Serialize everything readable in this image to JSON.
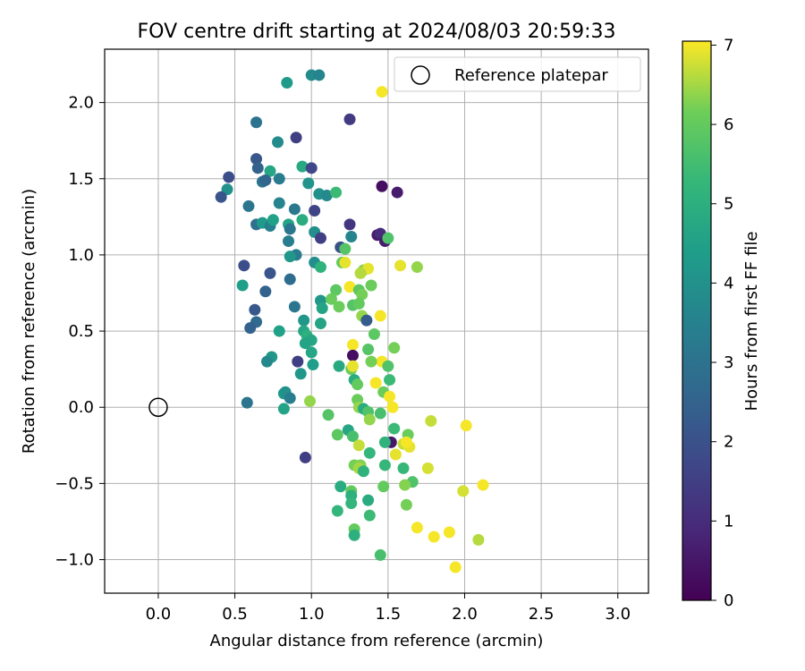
{
  "chart_data": {
    "type": "scatter",
    "title": "FOV centre drift starting at 2024/08/03 20:59:33",
    "xlabel": "Angular distance from reference (arcmin)",
    "ylabel": "Rotation from reference (arcmin)",
    "xlim": [
      -0.35,
      3.2
    ],
    "ylim": [
      -1.22,
      2.35
    ],
    "xticks": [
      0.0,
      0.5,
      1.0,
      1.5,
      2.0,
      2.5,
      3.0
    ],
    "xtick_labels": [
      "0.0",
      "0.5",
      "1.0",
      "1.5",
      "2.0",
      "2.5",
      "3.0"
    ],
    "yticks": [
      -1.0,
      -0.5,
      0.0,
      0.5,
      1.0,
      1.5,
      2.0
    ],
    "ytick_labels": [
      "−1.0",
      "−0.5",
      "0.0",
      "0.5",
      "1.0",
      "1.5",
      "2.0"
    ],
    "grid": true,
    "colormap": "viridis",
    "colorbar": {
      "label": "Hours from first FF file",
      "range": [
        0,
        7.05
      ],
      "ticks": [
        0,
        1,
        2,
        3,
        4,
        5,
        6,
        7
      ],
      "tick_labels": [
        "0",
        "1",
        "2",
        "3",
        "4",
        "5",
        "6",
        "7"
      ]
    },
    "legend": {
      "placement": "top-right",
      "entries": [
        {
          "label": "Reference platepar",
          "marker": "open-circle"
        }
      ]
    },
    "reference_point": {
      "x": 0.0,
      "y": 0.0
    },
    "series": [
      {
        "points": [
          [
            0.84,
            2.13,
            4.3
          ],
          [
            1.0,
            2.18,
            3.8
          ],
          [
            1.05,
            2.18,
            3.6
          ],
          [
            1.46,
            2.07,
            7.0
          ],
          [
            0.64,
            1.87,
            3.0
          ],
          [
            1.25,
            1.89,
            1.4
          ],
          [
            0.9,
            1.77,
            1.5
          ],
          [
            0.78,
            1.74,
            3.8
          ],
          [
            0.64,
            1.63,
            2.2
          ],
          [
            0.65,
            1.57,
            2.5
          ],
          [
            0.73,
            1.55,
            4.7
          ],
          [
            0.94,
            1.58,
            4.8
          ],
          [
            1.0,
            1.57,
            1.7
          ],
          [
            0.46,
            1.51,
            1.9
          ],
          [
            0.68,
            1.48,
            3.0
          ],
          [
            0.7,
            1.49,
            2.6
          ],
          [
            0.79,
            1.5,
            3.3
          ],
          [
            1.46,
            1.45,
            0.3
          ],
          [
            1.56,
            1.41,
            0.6
          ],
          [
            0.45,
            1.43,
            4.0
          ],
          [
            0.98,
            1.47,
            4.1
          ],
          [
            0.41,
            1.38,
            2.1
          ],
          [
            1.05,
            1.4,
            4.0
          ],
          [
            1.1,
            1.39,
            3.7
          ],
          [
            1.16,
            1.41,
            5.4
          ],
          [
            0.59,
            1.32,
            3.1
          ],
          [
            0.79,
            1.34,
            3.6
          ],
          [
            0.89,
            1.3,
            3.2
          ],
          [
            1.02,
            1.29,
            1.6
          ],
          [
            0.64,
            1.2,
            2.9
          ],
          [
            0.68,
            1.21,
            4.3
          ],
          [
            0.73,
            1.19,
            3.5
          ],
          [
            0.75,
            1.23,
            4.5
          ],
          [
            0.85,
            1.2,
            4.6
          ],
          [
            0.86,
            1.17,
            3.1
          ],
          [
            0.94,
            1.23,
            4.9
          ],
          [
            1.02,
            1.15,
            3.9
          ],
          [
            1.25,
            1.2,
            1.3
          ],
          [
            1.43,
            1.13,
            0.6
          ],
          [
            1.45,
            1.14,
            1.0
          ],
          [
            1.48,
            1.09,
            0.6
          ],
          [
            1.5,
            1.11,
            5.7
          ],
          [
            0.85,
            1.09,
            3.4
          ],
          [
            1.06,
            1.11,
            1.5
          ],
          [
            1.26,
            1.12,
            3.6
          ],
          [
            1.19,
            1.05,
            2.0
          ],
          [
            1.22,
            1.04,
            5.8
          ],
          [
            0.9,
            1.0,
            3.3
          ],
          [
            0.86,
            0.99,
            4.2
          ],
          [
            1.02,
            0.95,
            3.9
          ],
          [
            1.06,
            0.92,
            5.1
          ],
          [
            1.2,
            0.95,
            6.0
          ],
          [
            1.22,
            0.95,
            6.9
          ],
          [
            0.56,
            0.93,
            1.9
          ],
          [
            0.73,
            0.88,
            2.1
          ],
          [
            1.34,
            0.9,
            6.3
          ],
          [
            1.37,
            0.91,
            6.9
          ],
          [
            1.58,
            0.93,
            6.9
          ],
          [
            1.69,
            0.92,
            6.4
          ],
          [
            1.32,
            0.88,
            6.6
          ],
          [
            0.55,
            0.8,
            4.4
          ],
          [
            0.86,
            0.84,
            2.8
          ],
          [
            1.25,
            0.79,
            7.0
          ],
          [
            1.16,
            0.77,
            5.9
          ],
          [
            1.39,
            0.8,
            6.1
          ],
          [
            0.7,
            0.76,
            2.5
          ],
          [
            1.31,
            0.77,
            5.9
          ],
          [
            1.33,
            0.74,
            6.2
          ],
          [
            1.06,
            0.7,
            4.2
          ],
          [
            1.13,
            0.71,
            6.1
          ],
          [
            1.27,
            0.67,
            5.8
          ],
          [
            1.31,
            0.68,
            6.0
          ],
          [
            1.18,
            0.66,
            6.1
          ],
          [
            1.07,
            0.65,
            4.6
          ],
          [
            0.89,
            0.66,
            3.1
          ],
          [
            0.63,
            0.64,
            2.2
          ],
          [
            1.33,
            0.6,
            6.4
          ],
          [
            1.36,
            0.57,
            2.3
          ],
          [
            1.45,
            0.6,
            7.0
          ],
          [
            0.64,
            0.56,
            2.7
          ],
          [
            0.95,
            0.57,
            4.2
          ],
          [
            1.06,
            0.55,
            4.6
          ],
          [
            0.6,
            0.52,
            2.5
          ],
          [
            0.79,
            0.5,
            4.5
          ],
          [
            0.95,
            0.5,
            4.7
          ],
          [
            0.97,
            0.47,
            5.0
          ],
          [
            1.0,
            0.44,
            4.7
          ],
          [
            1.41,
            0.48,
            5.9
          ],
          [
            0.96,
            0.42,
            4.6
          ],
          [
            1.27,
            0.41,
            7.0
          ],
          [
            1.54,
            0.39,
            6.2
          ],
          [
            1.0,
            0.36,
            4.7
          ],
          [
            1.37,
            0.38,
            5.8
          ],
          [
            1.27,
            0.34,
            0.3
          ],
          [
            1.46,
            0.3,
            7.0
          ],
          [
            0.74,
            0.33,
            4.2
          ],
          [
            0.71,
            0.3,
            3.7
          ],
          [
            0.91,
            0.3,
            1.5
          ],
          [
            1.39,
            0.3,
            6.2
          ],
          [
            1.01,
            0.28,
            4.4
          ],
          [
            1.18,
            0.27,
            4.8
          ],
          [
            1.26,
            0.25,
            6.1
          ],
          [
            1.27,
            0.27,
            6.9
          ],
          [
            1.5,
            0.27,
            5.7
          ],
          [
            0.93,
            0.22,
            4.2
          ],
          [
            1.28,
            0.18,
            4.9
          ],
          [
            1.3,
            0.15,
            6.0
          ],
          [
            1.42,
            0.16,
            7.0
          ],
          [
            1.51,
            0.18,
            5.4
          ],
          [
            1.47,
            0.1,
            6.1
          ],
          [
            0.82,
            0.09,
            4.3
          ],
          [
            0.83,
            0.1,
            4.0
          ],
          [
            1.3,
            0.05,
            6.1
          ],
          [
            1.51,
            0.07,
            7.0
          ],
          [
            0.86,
            0.06,
            3.4
          ],
          [
            0.58,
            0.03,
            3.1
          ],
          [
            0.99,
            0.04,
            6.4
          ],
          [
            1.53,
            0.0,
            7.0
          ],
          [
            1.31,
            0.0,
            6.4
          ],
          [
            1.34,
            -0.01,
            4.9
          ],
          [
            1.37,
            -0.03,
            5.7
          ],
          [
            0.82,
            -0.01,
            4.6
          ],
          [
            1.45,
            -0.04,
            5.6
          ],
          [
            1.11,
            -0.05,
            5.8
          ],
          [
            1.38,
            -0.08,
            6.4
          ],
          [
            1.78,
            -0.09,
            6.7
          ],
          [
            2.01,
            -0.12,
            7.0
          ],
          [
            1.54,
            -0.14,
            5.4
          ],
          [
            1.24,
            -0.15,
            4.7
          ],
          [
            1.27,
            -0.19,
            5.6
          ],
          [
            1.17,
            -0.18,
            5.9
          ],
          [
            1.63,
            -0.18,
            6.1
          ],
          [
            1.52,
            -0.23,
            0.5
          ],
          [
            1.48,
            -0.23,
            5.1
          ],
          [
            1.31,
            -0.25,
            6.7
          ],
          [
            1.6,
            -0.24,
            6.7
          ],
          [
            1.64,
            -0.26,
            6.9
          ],
          [
            1.62,
            -0.23,
            7.0
          ],
          [
            1.38,
            -0.3,
            5.2
          ],
          [
            1.55,
            -0.31,
            6.9
          ],
          [
            0.96,
            -0.33,
            1.5
          ],
          [
            1.28,
            -0.38,
            6.2
          ],
          [
            1.32,
            -0.38,
            6.3
          ],
          [
            1.31,
            -0.4,
            6.5
          ],
          [
            1.48,
            -0.38,
            5.3
          ],
          [
            1.76,
            -0.4,
            6.8
          ],
          [
            1.6,
            -0.4,
            5.3
          ],
          [
            1.34,
            -0.42,
            5.1
          ],
          [
            1.66,
            -0.49,
            5.7
          ],
          [
            1.61,
            -0.51,
            6.3
          ],
          [
            1.47,
            -0.52,
            6.0
          ],
          [
            1.19,
            -0.52,
            4.9
          ],
          [
            1.26,
            -0.55,
            6.0
          ],
          [
            1.26,
            -0.58,
            5.0
          ],
          [
            2.12,
            -0.51,
            7.0
          ],
          [
            1.99,
            -0.55,
            6.8
          ],
          [
            1.37,
            -0.61,
            4.9
          ],
          [
            1.26,
            -0.63,
            5.2
          ],
          [
            1.62,
            -0.64,
            6.2
          ],
          [
            1.17,
            -0.68,
            5.2
          ],
          [
            1.38,
            -0.71,
            5.4
          ],
          [
            1.28,
            -0.8,
            6.0
          ],
          [
            1.69,
            -0.79,
            7.0
          ],
          [
            1.28,
            -0.84,
            5.0
          ],
          [
            1.8,
            -0.85,
            7.0
          ],
          [
            1.9,
            -0.82,
            7.0
          ],
          [
            2.09,
            -0.87,
            6.6
          ],
          [
            1.45,
            -0.97,
            5.6
          ],
          [
            1.94,
            -1.05,
            7.0
          ]
        ]
      }
    ]
  }
}
